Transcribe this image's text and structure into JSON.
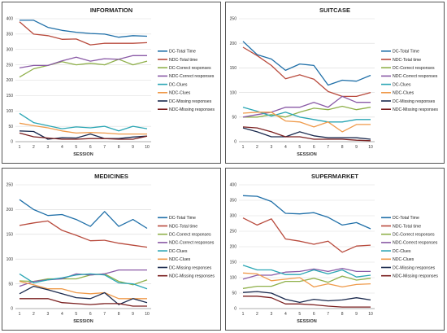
{
  "colors": {
    "DC-Total Time": "#1f6fa8",
    "NDC-Total time": "#b84a3c",
    "DC-Correct responses": "#8fb04a",
    "NDC-Correct responses": "#8a5aa6",
    "DC-Clues": "#2aa6b4",
    "NDC-Clues": "#ef9a4a",
    "DC-Missing responses": "#1b2a4e",
    "NDC-Missing responses": "#7a1f1f"
  },
  "chart_data": [
    {
      "type": "line",
      "title": "INFORMATION",
      "xlabel": "SESSION",
      "ylabel": "",
      "x": [
        1,
        2,
        3,
        4,
        5,
        6,
        7,
        8,
        9,
        10
      ],
      "ylim": [
        0,
        400
      ],
      "yticks": [
        0,
        50,
        100,
        150,
        200,
        250,
        300,
        350,
        400
      ],
      "grid": true,
      "legend": "right",
      "series": [
        {
          "name": "DC-Total Time",
          "values": [
            395,
            395,
            372,
            362,
            356,
            352,
            350,
            340,
            345,
            343
          ]
        },
        {
          "name": "NDC-Total time",
          "values": [
            390,
            350,
            345,
            333,
            334,
            315,
            320,
            320,
            320,
            322
          ]
        },
        {
          "name": "DC-Correct responses",
          "values": [
            210,
            237,
            248,
            260,
            250,
            255,
            250,
            268,
            250,
            262
          ]
        },
        {
          "name": "NDC-Correct responses",
          "values": [
            240,
            248,
            248,
            263,
            275,
            262,
            270,
            268,
            280,
            280
          ]
        },
        {
          "name": "DC-Clues",
          "values": [
            92,
            62,
            52,
            42,
            48,
            45,
            50,
            35,
            50,
            42
          ]
        },
        {
          "name": "NDC-Clues",
          "values": [
            60,
            52,
            45,
            35,
            28,
            30,
            28,
            25,
            25,
            25
          ]
        },
        {
          "name": "DC-Missing responses",
          "values": [
            35,
            33,
            8,
            13,
            12,
            25,
            10,
            10,
            15,
            18
          ]
        },
        {
          "name": "NDC-Missing responses",
          "values": [
            28,
            16,
            12,
            8,
            8,
            10,
            10,
            8,
            8,
            18
          ]
        }
      ]
    },
    {
      "type": "line",
      "title": "SUITCASE",
      "xlabel": "SESSION",
      "ylabel": "",
      "x": [
        1,
        2,
        3,
        4,
        5,
        6,
        7,
        8,
        9,
        10
      ],
      "ylim": [
        0,
        250
      ],
      "yticks": [
        0,
        50,
        100,
        150,
        200,
        250
      ],
      "grid": true,
      "legend": "right",
      "series": [
        {
          "name": "DC-Total Time",
          "values": [
            204,
            177,
            168,
            145,
            158,
            155,
            115,
            125,
            123,
            135
          ]
        },
        {
          "name": "NDC-Total time",
          "values": [
            192,
            175,
            155,
            128,
            136,
            127,
            102,
            92,
            92,
            100
          ]
        },
        {
          "name": "DC-Correct responses",
          "values": [
            50,
            50,
            55,
            50,
            60,
            68,
            65,
            72,
            65,
            70
          ]
        },
        {
          "name": "NDC-Correct responses",
          "values": [
            50,
            55,
            60,
            70,
            70,
            80,
            70,
            92,
            80,
            80
          ]
        },
        {
          "name": "DC-Clues",
          "values": [
            70,
            62,
            52,
            60,
            50,
            45,
            40,
            40,
            45,
            45
          ]
        },
        {
          "name": "NDC-Clues",
          "values": [
            58,
            60,
            60,
            42,
            40,
            30,
            40,
            20,
            35,
            35
          ]
        },
        {
          "name": "DC-Missing responses",
          "values": [
            28,
            20,
            10,
            10,
            20,
            12,
            8,
            8,
            8,
            5
          ]
        },
        {
          "name": "NDC-Missing responses",
          "values": [
            30,
            28,
            20,
            10,
            10,
            5,
            5,
            5,
            3,
            2
          ]
        }
      ]
    },
    {
      "type": "line",
      "title": "MEDICINES",
      "xlabel": "SESSION",
      "ylabel": "",
      "x": [
        1,
        2,
        3,
        4,
        5,
        6,
        7,
        8,
        9,
        10
      ],
      "ylim": [
        0,
        250
      ],
      "yticks": [
        0,
        50,
        100,
        150,
        200,
        250
      ],
      "grid": true,
      "legend": "right",
      "series": [
        {
          "name": "DC-Total Time",
          "values": [
            220,
            200,
            188,
            190,
            180,
            166,
            196,
            166,
            180,
            162
          ]
        },
        {
          "name": "NDC-Total time",
          "values": [
            168,
            173,
            177,
            158,
            148,
            137,
            138,
            132,
            128,
            124
          ]
        },
        {
          "name": "DC-Correct responses",
          "values": [
            56,
            55,
            60,
            60,
            60,
            68,
            70,
            55,
            48,
            58
          ]
        },
        {
          "name": "NDC-Correct responses",
          "values": [
            45,
            55,
            58,
            60,
            70,
            68,
            70,
            78,
            78,
            78
          ]
        },
        {
          "name": "DC-Clues",
          "values": [
            70,
            52,
            58,
            62,
            68,
            70,
            68,
            52,
            50,
            40
          ]
        },
        {
          "name": "NDC-Clues",
          "values": [
            55,
            48,
            40,
            40,
            32,
            30,
            32,
            20,
            20,
            20
          ]
        },
        {
          "name": "DC-Missing responses",
          "values": [
            30,
            45,
            38,
            30,
            22,
            20,
            32,
            8,
            20,
            12
          ]
        },
        {
          "name": "NDC-Missing responses",
          "values": [
            20,
            20,
            20,
            12,
            10,
            8,
            10,
            10,
            5,
            5
          ]
        }
      ]
    },
    {
      "type": "line",
      "title": "SUPERMARKET",
      "xlabel": "SESSION",
      "ylabel": "",
      "x": [
        1,
        2,
        3,
        4,
        5,
        6,
        7,
        8,
        9,
        10
      ],
      "ylim": [
        0,
        400
      ],
      "yticks": [
        0,
        50,
        100,
        150,
        200,
        250,
        300,
        350,
        400
      ],
      "grid": true,
      "legend": "right",
      "series": [
        {
          "name": "DC-Total Time",
          "values": [
            365,
            363,
            346,
            308,
            306,
            310,
            295,
            270,
            278,
            258
          ]
        },
        {
          "name": "NDC-Total time",
          "values": [
            293,
            270,
            290,
            225,
            218,
            208,
            218,
            182,
            202,
            205
          ]
        },
        {
          "name": "DC-Correct responses",
          "values": [
            65,
            72,
            72,
            88,
            88,
            98,
            85,
            105,
            92,
            98
          ]
        },
        {
          "name": "NDC-Correct responses",
          "values": [
            95,
            108,
            108,
            118,
            120,
            128,
            120,
            130,
            120,
            120
          ]
        },
        {
          "name": "DC-Clues",
          "values": [
            140,
            125,
            125,
            110,
            110,
            125,
            112,
            125,
            102,
            108
          ]
        },
        {
          "name": "NDC-Clues",
          "values": [
            115,
            112,
            90,
            95,
            100,
            70,
            80,
            70,
            78,
            80
          ]
        },
        {
          "name": "DC-Missing responses",
          "values": [
            52,
            55,
            50,
            30,
            20,
            30,
            25,
            28,
            35,
            28
          ]
        },
        {
          "name": "NDC-Missing responses",
          "values": [
            40,
            40,
            35,
            15,
            15,
            12,
            8,
            5,
            5,
            5
          ]
        }
      ]
    }
  ]
}
